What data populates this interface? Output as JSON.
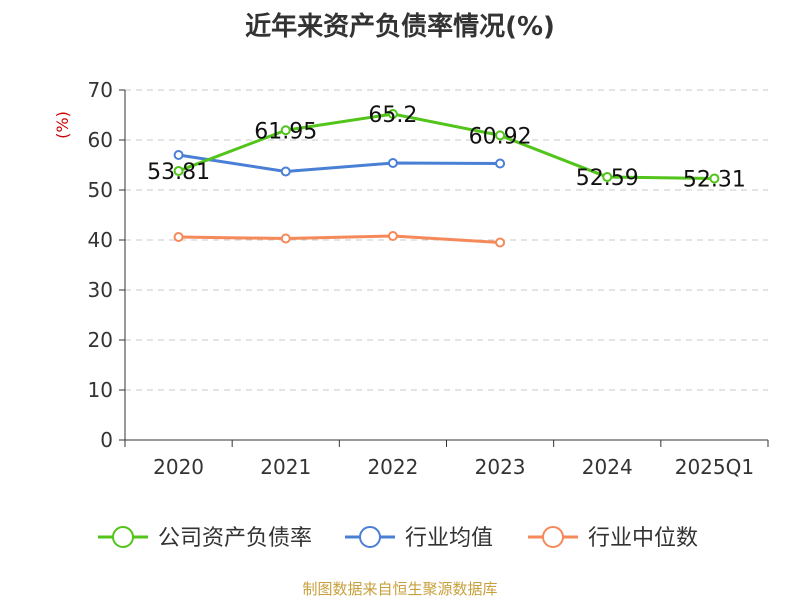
{
  "chart_data": {
    "type": "line",
    "title": "近年来资产负债率情况(%)",
    "ylabel": "(%)",
    "categories": [
      "2020",
      "2021",
      "2022",
      "2023",
      "2024",
      "2025Q1"
    ],
    "ylim": [
      0,
      70
    ],
    "yticks": [
      0,
      10,
      20,
      30,
      40,
      50,
      60,
      70
    ],
    "grid": true,
    "legend_position": "bottom",
    "series": [
      {
        "name": "公司资产负债率",
        "color": "#52c41a",
        "values": [
          53.81,
          61.95,
          65.2,
          60.92,
          52.59,
          52.31
        ],
        "labels": [
          "53.81",
          "61.95",
          "65.2",
          "60.92",
          "52.59",
          "52.31"
        ]
      },
      {
        "name": "行业均值",
        "color": "#4a7fd6",
        "values": [
          57.0,
          53.7,
          55.4,
          55.3,
          null,
          null
        ]
      },
      {
        "name": "行业中位数",
        "color": "#f5895a",
        "values": [
          40.6,
          40.3,
          40.8,
          39.5,
          null,
          null
        ]
      }
    ]
  },
  "source_note": "制图数据来自恒生聚源数据库"
}
